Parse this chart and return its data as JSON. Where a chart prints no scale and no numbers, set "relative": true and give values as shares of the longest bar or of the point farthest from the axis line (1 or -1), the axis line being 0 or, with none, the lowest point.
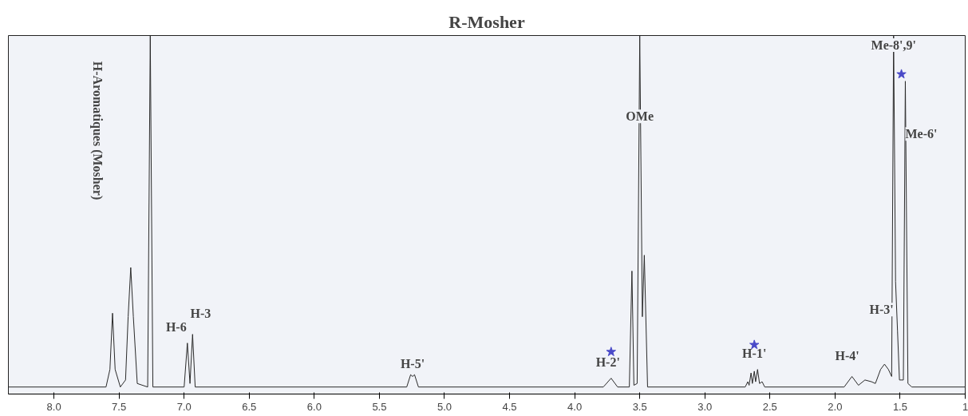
{
  "chart_data": {
    "type": "line",
    "title": "R-Mosher",
    "relative": true,
    "xlim": [
      8.35,
      1.0
    ],
    "xticks": [
      {
        "value": 8.0,
        "label": "8.0"
      },
      {
        "value": 7.5,
        "label": "7.5"
      },
      {
        "value": 7.0,
        "label": "7.0"
      },
      {
        "value": 6.5,
        "label": "6.5"
      },
      {
        "value": 6.0,
        "label": "6.0"
      },
      {
        "value": 5.5,
        "label": "5.5"
      },
      {
        "value": 5.0,
        "label": "5.0"
      },
      {
        "value": 4.5,
        "label": "4.5"
      },
      {
        "value": 4.0,
        "label": "4.0"
      },
      {
        "value": 3.5,
        "label": "3.5"
      },
      {
        "value": 3.0,
        "label": "3.0"
      },
      {
        "value": 2.5,
        "label": "2.5"
      },
      {
        "value": 2.0,
        "label": "2.0"
      },
      {
        "value": 1.5,
        "label": "1.5"
      },
      {
        "value": 1.0,
        "label": "1"
      }
    ],
    "grid": false,
    "tick_labels": "x",
    "line_style": "solid",
    "marker": "none",
    "series": [
      {
        "color": "#2a2a2a",
        "x": [
          8.35,
          7.6,
          7.57,
          7.55,
          7.53,
          7.49,
          7.45,
          7.43,
          7.41,
          7.39,
          7.36,
          7.28,
          7.26,
          7.24,
          7.0,
          6.975,
          6.955,
          6.935,
          6.915,
          5.29,
          5.26,
          5.245,
          5.23,
          5.2,
          3.78,
          3.72,
          3.67,
          3.58,
          3.56,
          3.545,
          3.52,
          3.5,
          3.48,
          3.465,
          3.44,
          2.69,
          2.67,
          2.66,
          2.645,
          2.635,
          2.62,
          2.61,
          2.595,
          2.58,
          2.56,
          2.54,
          1.93,
          1.87,
          1.82,
          1.77,
          1.72,
          1.69,
          1.65,
          1.62,
          1.59,
          1.565,
          1.55,
          1.535,
          1.52,
          1.505,
          1.475,
          1.46,
          1.44,
          1.41,
          1.0
        ],
        "values": [
          0,
          0,
          0.05,
          0.21,
          0.05,
          0,
          0.02,
          0.2,
          0.34,
          0.2,
          0.01,
          0,
          1.0,
          0,
          0,
          0.125,
          0.01,
          0.15,
          0,
          0,
          0.035,
          0.03,
          0.035,
          0,
          0,
          0.025,
          0,
          0,
          0.33,
          0.005,
          0.01,
          1.0,
          0.2,
          0.375,
          0,
          0,
          0.015,
          0.005,
          0.04,
          0.01,
          0.045,
          0.015,
          0.05,
          0.01,
          0.015,
          0,
          0,
          0.03,
          0.005,
          0.02,
          0.015,
          0.01,
          0.05,
          0.065,
          0.05,
          0.03,
          1.0,
          0.3,
          0.16,
          0.02,
          0.02,
          0.87,
          0.01,
          0,
          0
        ]
      },
      {
        "type": "scatter",
        "marker": "star",
        "color": "#4a4ac8",
        "x": [
          3.72,
          2.62,
          1.49
        ],
        "values": [
          0.1,
          0.12,
          0.89
        ]
      }
    ],
    "annotations": [
      "H-Aromatiques (Mosher)",
      {
        "text": "H-6",
        "x": 6.975,
        "y": 0.125
      },
      {
        "text": "H-3",
        "x": 6.935,
        "y": 0.15
      },
      {
        "text": "H-5'",
        "x": 5.245,
        "y": 0.03
      },
      {
        "text": "H-2'",
        "x": 3.72,
        "y": 0.025
      },
      {
        "text": "OMe",
        "x": 3.5,
        "y": 0.77
      },
      {
        "text": "H-1'",
        "x": 2.62,
        "y": 0.045
      },
      {
        "text": "H-4'",
        "x": 1.87,
        "y": 0.03
      },
      {
        "text": "H-3'",
        "x": 1.55,
        "y": 0.22
      },
      {
        "text": "Me-8',9'",
        "x": 1.55,
        "y": 1.0
      },
      {
        "text": "Me-6'",
        "x": 1.46,
        "y": 0.72
      }
    ]
  }
}
